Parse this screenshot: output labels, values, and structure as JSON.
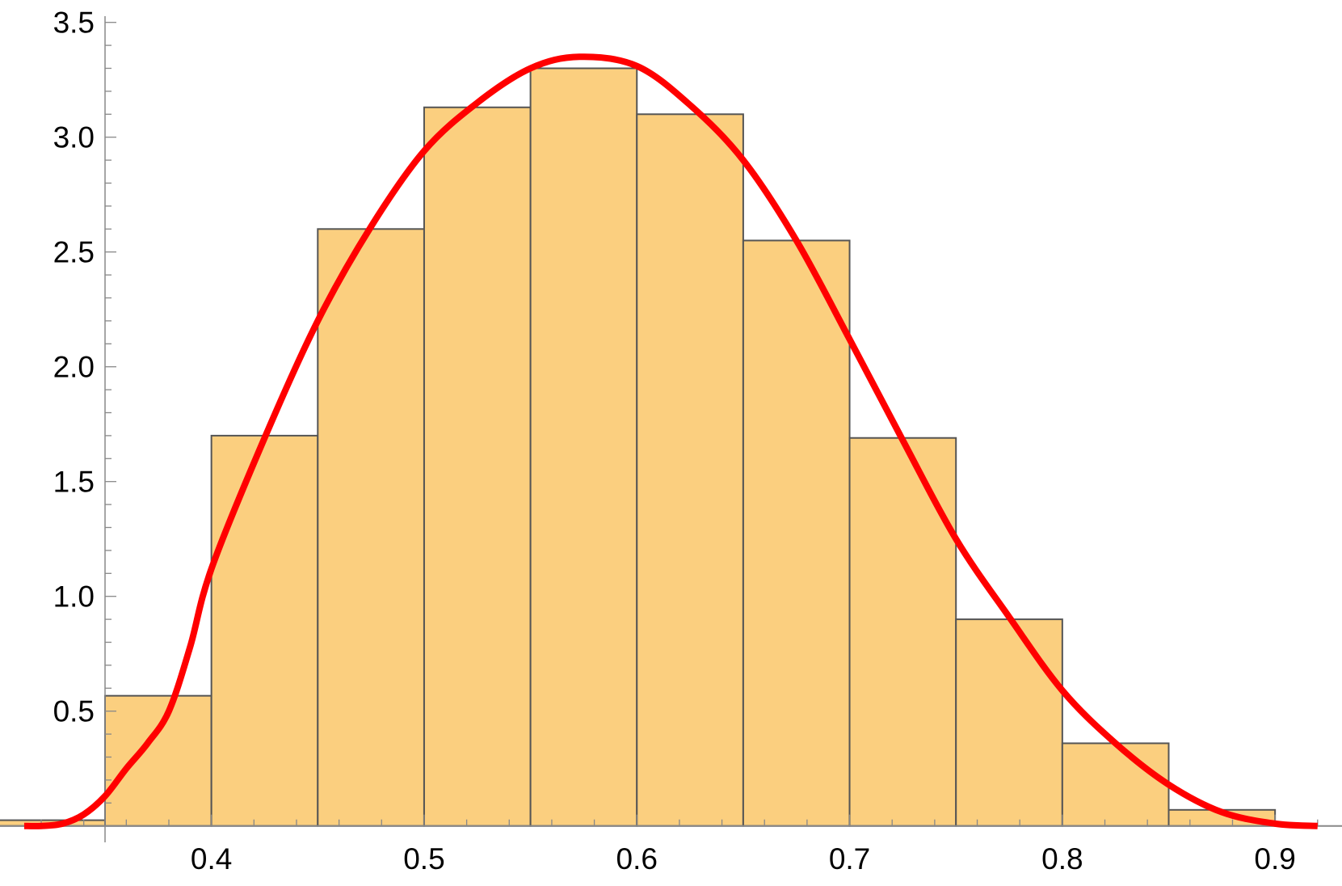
{
  "chart_data": {
    "type": "bar",
    "title": "",
    "xlabel": "",
    "ylabel": "",
    "xlim": [
      0.3,
      0.93
    ],
    "ylim": [
      0,
      3.5
    ],
    "grid": false,
    "bar_fill": "#fbcf7f",
    "bar_edge": "#555555",
    "curve_color": "#ff0000",
    "x_ticks": [
      "0.4",
      "0.5",
      "0.6",
      "0.7",
      "0.8",
      "0.9"
    ],
    "y_ticks": [
      "0.5",
      "1.0",
      "1.5",
      "2.0",
      "2.5",
      "3.0",
      "3.5"
    ],
    "bins": [
      {
        "from": 0.3,
        "to": 0.35,
        "value": 0.025
      },
      {
        "from": 0.35,
        "to": 0.4,
        "value": 0.567
      },
      {
        "from": 0.4,
        "to": 0.45,
        "value": 1.7
      },
      {
        "from": 0.45,
        "to": 0.5,
        "value": 2.6
      },
      {
        "from": 0.5,
        "to": 0.55,
        "value": 3.13
      },
      {
        "from": 0.55,
        "to": 0.6,
        "value": 3.3
      },
      {
        "from": 0.6,
        "to": 0.65,
        "value": 3.1
      },
      {
        "from": 0.65,
        "to": 0.7,
        "value": 2.55
      },
      {
        "from": 0.7,
        "to": 0.75,
        "value": 1.69
      },
      {
        "from": 0.75,
        "to": 0.8,
        "value": 0.9
      },
      {
        "from": 0.8,
        "to": 0.85,
        "value": 0.36
      },
      {
        "from": 0.85,
        "to": 0.9,
        "value": 0.07
      }
    ],
    "curve": {
      "x": [
        0.312,
        0.32,
        0.33,
        0.34,
        0.35,
        0.36,
        0.37,
        0.38,
        0.39,
        0.4,
        0.425,
        0.45,
        0.475,
        0.5,
        0.525,
        0.55,
        0.573,
        0.6,
        0.625,
        0.65,
        0.675,
        0.7,
        0.725,
        0.75,
        0.775,
        0.8,
        0.825,
        0.85,
        0.875,
        0.9,
        0.92
      ],
      "y": [
        0.0,
        0.0,
        0.01,
        0.05,
        0.13,
        0.25,
        0.36,
        0.5,
        0.78,
        1.12,
        1.69,
        2.2,
        2.61,
        2.94,
        3.15,
        3.3,
        3.35,
        3.31,
        3.14,
        2.9,
        2.55,
        2.12,
        1.68,
        1.25,
        0.91,
        0.59,
        0.36,
        0.18,
        0.06,
        0.01,
        0.0
      ]
    }
  }
}
